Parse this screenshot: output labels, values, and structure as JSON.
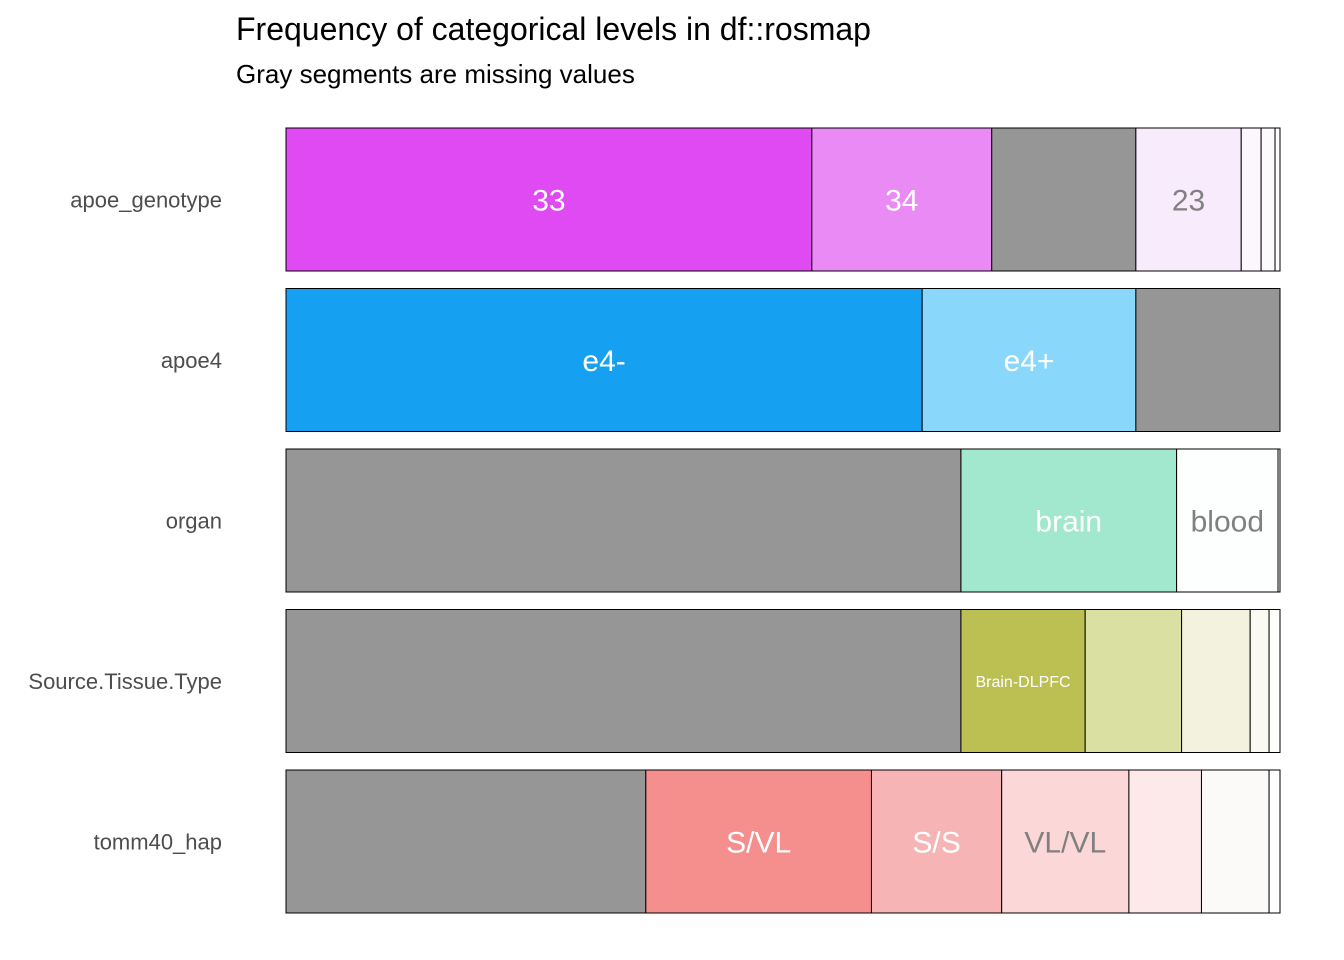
{
  "chart_data": {
    "type": "bar",
    "orientation": "horizontal-stacked-proportion",
    "title": "Frequency of categorical levels in df::rosmap",
    "subtitle": "Gray segments are missing values",
    "grid": false,
    "legend": "none",
    "missing_color": "#969696",
    "rows": [
      {
        "label": "apoe_genotype",
        "segments": [
          {
            "level": "33",
            "fraction": 0.529,
            "color": "#DF4AF2",
            "label": "33",
            "label_color": "#ffffff"
          },
          {
            "level": "34",
            "fraction": 0.181,
            "color": "#E98AF5",
            "label": "34",
            "label_color": "#ffffff"
          },
          {
            "level": "NA",
            "fraction": 0.145,
            "color": "#969696",
            "label": "",
            "label_color": "#ffffff"
          },
          {
            "level": "23",
            "fraction": 0.106,
            "color": "#F8EBFC",
            "label": "23",
            "label_color": "#808080"
          },
          {
            "level": "",
            "fraction": 0.02,
            "color": "#FCF7FD",
            "label": "",
            "label_color": "#808080"
          },
          {
            "level": "",
            "fraction": 0.014,
            "color": "#FDFAFE",
            "label": "",
            "label_color": "#808080"
          },
          {
            "level": "",
            "fraction": 0.005,
            "color": "#FEFDFF",
            "label": "",
            "label_color": "#808080"
          }
        ]
      },
      {
        "label": "apoe4",
        "segments": [
          {
            "level": "e4-",
            "fraction": 0.64,
            "color": "#16A0F1",
            "label": "e4-",
            "label_color": "#ffffff"
          },
          {
            "level": "e4+",
            "fraction": 0.215,
            "color": "#89D8FC",
            "label": "e4+",
            "label_color": "#ffffff"
          },
          {
            "level": "NA",
            "fraction": 0.145,
            "color": "#969696",
            "label": "",
            "label_color": "#ffffff"
          }
        ]
      },
      {
        "label": "organ",
        "segments": [
          {
            "level": "NA",
            "fraction": 0.679,
            "color": "#969696",
            "label": "",
            "label_color": "#ffffff"
          },
          {
            "level": "brain",
            "fraction": 0.217,
            "color": "#A1E8CF",
            "label": "brain",
            "label_color": "#ffffff"
          },
          {
            "level": "blood",
            "fraction": 0.102,
            "color": "#FCFFFD",
            "label": "blood",
            "label_color": "#808080"
          },
          {
            "level": "",
            "fraction": 0.002,
            "color": "#FFFFFF",
            "label": "",
            "label_color": "#808080"
          }
        ]
      },
      {
        "label": "Source.Tissue.Type",
        "segments": [
          {
            "level": "NA",
            "fraction": 0.679,
            "color": "#969696",
            "label": "",
            "label_color": "#ffffff"
          },
          {
            "level": "Brain-DLPFC",
            "fraction": 0.125,
            "color": "#BCBF51",
            "label": "Brain-DLPFC",
            "label_color": "#ffffff",
            "small": true
          },
          {
            "level": "",
            "fraction": 0.097,
            "color": "#DADFA2",
            "label": "",
            "label_color": "#808080"
          },
          {
            "level": "",
            "fraction": 0.069,
            "color": "#F2F2DF",
            "label": "",
            "label_color": "#808080"
          },
          {
            "level": "",
            "fraction": 0.019,
            "color": "#FAFAF2",
            "label": "",
            "label_color": "#808080"
          },
          {
            "level": "",
            "fraction": 0.011,
            "color": "#FEFEFB",
            "label": "",
            "label_color": "#808080"
          }
        ]
      },
      {
        "label": "tomm40_hap",
        "segments": [
          {
            "level": "NA",
            "fraction": 0.362,
            "color": "#969696",
            "label": "",
            "label_color": "#ffffff"
          },
          {
            "level": "S/VL",
            "fraction": 0.227,
            "color": "#F58F8D",
            "label": "S/VL",
            "label_color": "#ffffff"
          },
          {
            "level": "S/S",
            "fraction": 0.131,
            "color": "#F7B4B4",
            "label": "S/S",
            "label_color": "#ffffff"
          },
          {
            "level": "VL/VL",
            "fraction": 0.128,
            "color": "#FCD7D8",
            "label": "VL/VL",
            "label_color": "#808080"
          },
          {
            "level": "",
            "fraction": 0.073,
            "color": "#FDE9EA",
            "label": "",
            "label_color": "#808080"
          },
          {
            "level": "",
            "fraction": 0.068,
            "color": "#FCFAF8",
            "label": "",
            "label_color": "#808080"
          },
          {
            "level": "",
            "fraction": 0.011,
            "color": "#FFFFFF",
            "label": "",
            "label_color": "#808080"
          }
        ]
      }
    ]
  }
}
